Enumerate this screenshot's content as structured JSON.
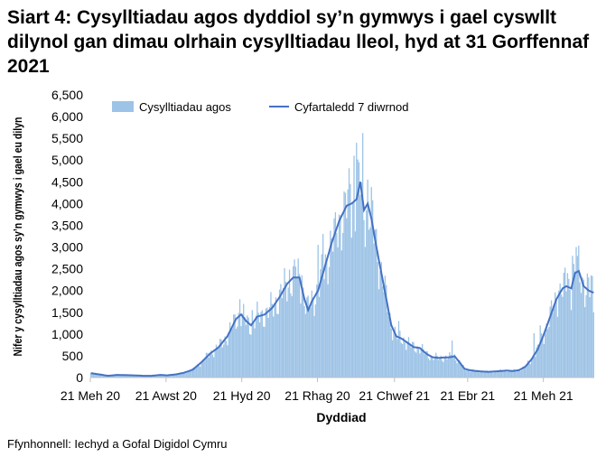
{
  "title": "Siart 4: Cysylltiadau agos dyddiol sy’n gymwys i gael cyswllt dilynol gan dimau olrhain cysylltiadau lleol, hyd at 31 Gorffennaf 2021",
  "source": "Ffynhonnell: Iechyd a Gofal Digidol Cymru",
  "colors": {
    "bars": "#9dc3e6",
    "line": "#4472c4",
    "axis": "#bfbfbf"
  },
  "chart_data": {
    "type": "bar",
    "xlabel": "Dyddiad",
    "ylabel": "Nifer y cysylltiadau agos sy’n gymwys i gael eu dilyn",
    "ylim": [
      0,
      6500
    ],
    "yticks": [
      0,
      500,
      1000,
      1500,
      2000,
      2500,
      3000,
      3500,
      4000,
      4500,
      5000,
      5500,
      6000,
      6500
    ],
    "ytick_labels": [
      "0",
      "500",
      "1,000",
      "1,500",
      "2,000",
      "2,500",
      "3,000",
      "3,500",
      "4,000",
      "4,500",
      "5,000",
      "5,500",
      "6,000",
      "6,500"
    ],
    "xticks": [
      "21 Meh 20",
      "21 Awst 20",
      "21 Hyd 20",
      "21 Rhag 20",
      "21 Chwef 21",
      "21 Ebr 21",
      "21 Meh 21"
    ],
    "xtick_day_index": [
      0,
      61,
      122,
      183,
      245,
      304,
      365
    ],
    "legend": {
      "position": "top",
      "bars": "Cysylltiadau agos",
      "line": "Cyfartaledd 7 diwrnod"
    },
    "days": 406,
    "keyframes_day_value": [
      [
        0,
        100
      ],
      [
        7,
        70
      ],
      [
        14,
        40
      ],
      [
        21,
        60
      ],
      [
        28,
        55
      ],
      [
        35,
        50
      ],
      [
        42,
        40
      ],
      [
        49,
        40
      ],
      [
        56,
        60
      ],
      [
        61,
        50
      ],
      [
        68,
        70
      ],
      [
        75,
        110
      ],
      [
        82,
        180
      ],
      [
        89,
        350
      ],
      [
        96,
        550
      ],
      [
        103,
        700
      ],
      [
        110,
        950
      ],
      [
        117,
        1350
      ],
      [
        121,
        1450
      ],
      [
        125,
        1300
      ],
      [
        129,
        1200
      ],
      [
        134,
        1400
      ],
      [
        140,
        1450
      ],
      [
        146,
        1600
      ],
      [
        152,
        1850
      ],
      [
        158,
        2150
      ],
      [
        163,
        2300
      ],
      [
        168,
        2300
      ],
      [
        172,
        1800
      ],
      [
        175,
        1550
      ],
      [
        178,
        1750
      ],
      [
        183,
        2000
      ],
      [
        188,
        2500
      ],
      [
        194,
        3100
      ],
      [
        200,
        3600
      ],
      [
        206,
        3950
      ],
      [
        210,
        4000
      ],
      [
        214,
        4100
      ],
      [
        217,
        4500
      ],
      [
        220,
        3850
      ],
      [
        223,
        4000
      ],
      [
        226,
        3650
      ],
      [
        230,
        3000
      ],
      [
        234,
        2400
      ],
      [
        238,
        1800
      ],
      [
        242,
        1200
      ],
      [
        246,
        950
      ],
      [
        250,
        900
      ],
      [
        255,
        800
      ],
      [
        260,
        700
      ],
      [
        265,
        680
      ],
      [
        270,
        550
      ],
      [
        275,
        470
      ],
      [
        280,
        450
      ],
      [
        285,
        460
      ],
      [
        290,
        470
      ],
      [
        293,
        490
      ],
      [
        297,
        350
      ],
      [
        301,
        200
      ],
      [
        305,
        170
      ],
      [
        310,
        150
      ],
      [
        315,
        140
      ],
      [
        320,
        130
      ],
      [
        325,
        140
      ],
      [
        330,
        150
      ],
      [
        335,
        160
      ],
      [
        340,
        150
      ],
      [
        345,
        170
      ],
      [
        350,
        250
      ],
      [
        355,
        420
      ],
      [
        360,
        650
      ],
      [
        365,
        1000
      ],
      [
        370,
        1400
      ],
      [
        375,
        1800
      ],
      [
        380,
        2050
      ],
      [
        383,
        2100
      ],
      [
        387,
        2050
      ],
      [
        390,
        2400
      ],
      [
        393,
        2450
      ],
      [
        397,
        2100
      ],
      [
        401,
        2000
      ],
      [
        405,
        1950
      ]
    ],
    "notable_peaks_day_value": [
      [
        120,
        1800
      ],
      [
        130,
        1550
      ],
      [
        160,
        2480
      ],
      [
        165,
        2550
      ],
      [
        170,
        2350
      ],
      [
        183,
        3050
      ],
      [
        187,
        3300
      ],
      [
        197,
        3800
      ],
      [
        204,
        4280
      ],
      [
        209,
        4450
      ],
      [
        212,
        5100
      ],
      [
        214,
        5400
      ],
      [
        216,
        4950
      ],
      [
        219,
        5620
      ],
      [
        223,
        4550
      ],
      [
        229,
        3400
      ],
      [
        248,
        1300
      ],
      [
        291,
        850
      ],
      [
        357,
        1020
      ],
      [
        362,
        1200
      ],
      [
        377,
        2000
      ],
      [
        384,
        2400
      ],
      [
        388,
        2800
      ],
      [
        391,
        3000
      ],
      [
        393,
        3030
      ],
      [
        397,
        2250
      ],
      [
        401,
        2300
      ],
      [
        403,
        2350
      ],
      [
        405,
        1500
      ]
    ]
  }
}
